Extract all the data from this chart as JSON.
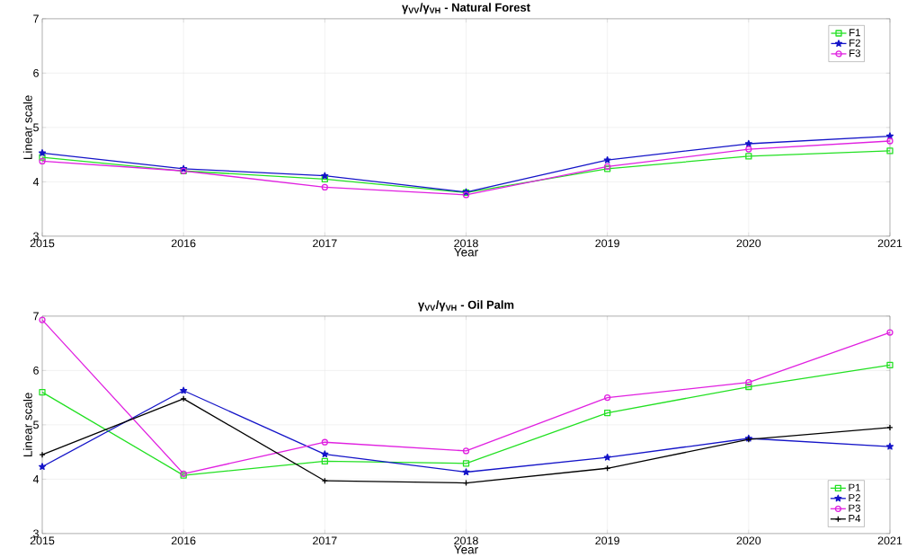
{
  "chart_data": [
    {
      "type": "line",
      "title": "γ$_{VV}$/γ$_{VH}$  -  **Natural Forest**",
      "xlabel": "Year",
      "ylabel": "Linear scale",
      "x": [
        2015,
        2016,
        2017,
        2018,
        2019,
        2020,
        2021
      ],
      "xlim": [
        2015,
        2021
      ],
      "ylim": [
        3,
        7
      ],
      "xticks": [
        2015,
        2016,
        2017,
        2018,
        2019,
        2020,
        2021
      ],
      "yticks": [
        3,
        4,
        5,
        6,
        7
      ],
      "grid": true,
      "legend": "top right",
      "series": [
        {
          "name": "F1",
          "color": "#22e022",
          "marker": "square",
          "values": [
            4.45,
            4.2,
            4.05,
            3.8,
            4.24,
            4.47,
            4.57
          ]
        },
        {
          "name": "F2",
          "color": "#1414c8",
          "marker": "star",
          "values": [
            4.53,
            4.24,
            4.11,
            3.81,
            4.4,
            4.7,
            4.84
          ]
        },
        {
          "name": "F3",
          "color": "#e020e0",
          "marker": "circle",
          "values": [
            4.38,
            4.2,
            3.9,
            3.76,
            4.28,
            4.6,
            4.75
          ]
        }
      ]
    },
    {
      "type": "line",
      "title": "γ$_{VV}$/γ$_{VH}$  -  **Oil Palm**",
      "xlabel": "Year",
      "ylabel": "Linear scale",
      "x": [
        2015,
        2016,
        2017,
        2018,
        2019,
        2020,
        2021
      ],
      "xlim": [
        2015,
        2021
      ],
      "ylim": [
        3,
        7
      ],
      "xticks": [
        2015,
        2016,
        2017,
        2018,
        2019,
        2020,
        2021
      ],
      "yticks": [
        3,
        4,
        5,
        6,
        7
      ],
      "grid": true,
      "legend": "bottom right",
      "series": [
        {
          "name": "P1",
          "color": "#22e022",
          "marker": "square",
          "values": [
            5.6,
            4.07,
            4.33,
            4.29,
            5.22,
            5.7,
            6.1
          ]
        },
        {
          "name": "P2",
          "color": "#1414c8",
          "marker": "star",
          "values": [
            4.23,
            5.63,
            4.46,
            4.13,
            4.4,
            4.75,
            4.6
          ]
        },
        {
          "name": "P3",
          "color": "#e020e0",
          "marker": "circle",
          "values": [
            6.93,
            4.1,
            4.68,
            4.52,
            5.5,
            5.78,
            6.7
          ]
        },
        {
          "name": "P4",
          "color": "#000000",
          "marker": "cross",
          "values": [
            4.45,
            5.48,
            3.97,
            3.93,
            4.2,
            4.73,
            4.95
          ]
        }
      ]
    }
  ]
}
